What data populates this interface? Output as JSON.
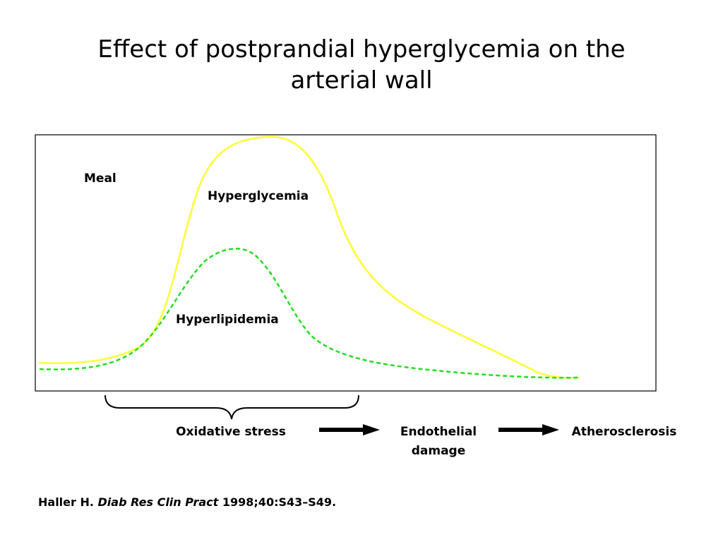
{
  "title": {
    "line1": "Effect of postprandial hyperglycemia on the",
    "line2": "arterial wall"
  },
  "colors": {
    "hyperglycemia_curve": "#ffff33",
    "hyperlipidemia_curve": "#22dd22",
    "frame": "#000000"
  },
  "graph": {
    "meal_label": "Meal",
    "hyperglycemia_label": "Hyperglycemia",
    "hyperlipidemia_label": "Hyperlipidemia"
  },
  "flow": {
    "step1": "Oxidative stress",
    "step2_line1": "Endothelial",
    "step2_line2": "damage",
    "step3": "Atherosclerosis",
    "arrow_icon": "right-arrow-icon",
    "brace_icon": "curly-brace-icon"
  },
  "citation": {
    "author": "Haller H.",
    "journal": "Diab Res Clin Pract",
    "details": "1998;40:S43–S49."
  }
}
